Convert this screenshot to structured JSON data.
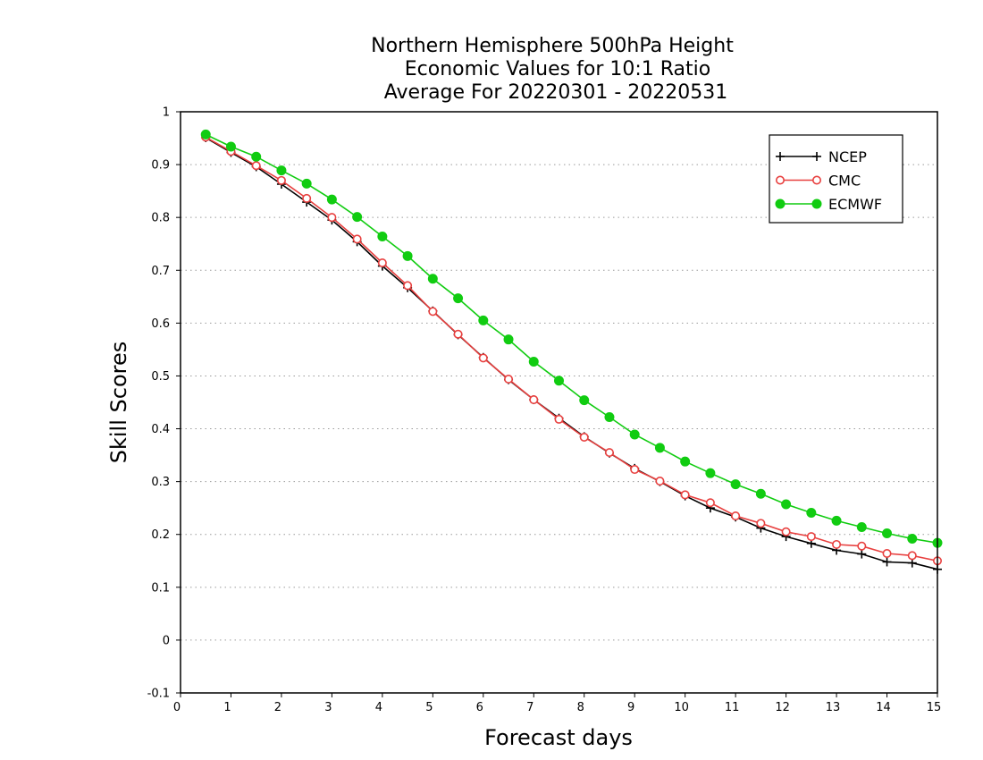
{
  "chart_data": {
    "type": "line",
    "title_lines": [
      "Northern Hemisphere 500hPa Height",
      "Economic Values for 10:1 Ratio",
      "Average For 20220301 - 20220531"
    ],
    "xlabel": "Forecast days",
    "ylabel": "Skill Scores",
    "xlim": [
      0,
      15
    ],
    "ylim": [
      -0.1,
      1
    ],
    "xticks": [
      "0",
      "1",
      "2",
      "3",
      "4",
      "5",
      "6",
      "7",
      "8",
      "9",
      "10",
      "11",
      "12",
      "13",
      "14",
      "15"
    ],
    "yticks": [
      "-0.1",
      "0",
      "0.1",
      "0.2",
      "0.3",
      "0.4",
      "0.5",
      "0.6",
      "0.7",
      "0.8",
      "0.9",
      "1"
    ],
    "grid": "horizontal-dotted",
    "legend_position": "top-right",
    "x": [
      0.5,
      1,
      1.5,
      2,
      2.5,
      3,
      3.5,
      4,
      4.5,
      5,
      5.5,
      6,
      6.5,
      7,
      7.5,
      8,
      8.5,
      9,
      9.5,
      10,
      10.5,
      11,
      11.5,
      12,
      12.5,
      13,
      13.5,
      14,
      14.5,
      15
    ],
    "series": [
      {
        "name": "NCEP",
        "color": "#000000",
        "marker": "plus",
        "values": [
          0.951,
          0.923,
          0.896,
          0.863,
          0.829,
          0.795,
          0.754,
          0.708,
          0.667,
          0.623,
          0.578,
          0.535,
          0.493,
          0.455,
          0.42,
          0.385,
          0.354,
          0.325,
          0.3,
          0.273,
          0.25,
          0.233,
          0.212,
          0.196,
          0.183,
          0.17,
          0.163,
          0.148,
          0.146,
          0.134
        ]
      },
      {
        "name": "CMC",
        "color": "#e8403f",
        "marker": "open-circle",
        "values": [
          0.952,
          0.925,
          0.898,
          0.87,
          0.836,
          0.8,
          0.759,
          0.714,
          0.671,
          0.622,
          0.579,
          0.534,
          0.494,
          0.455,
          0.418,
          0.384,
          0.355,
          0.323,
          0.301,
          0.275,
          0.26,
          0.235,
          0.221,
          0.205,
          0.196,
          0.181,
          0.178,
          0.164,
          0.16,
          0.15
        ]
      },
      {
        "name": "ECMWF",
        "color": "#11cc11",
        "marker": "filled-circle",
        "values": [
          0.957,
          0.934,
          0.915,
          0.889,
          0.864,
          0.834,
          0.801,
          0.764,
          0.727,
          0.684,
          0.647,
          0.605,
          0.569,
          0.527,
          0.491,
          0.454,
          0.422,
          0.389,
          0.364,
          0.338,
          0.316,
          0.295,
          0.277,
          0.257,
          0.241,
          0.226,
          0.214,
          0.202,
          0.192,
          0.184
        ]
      }
    ]
  }
}
